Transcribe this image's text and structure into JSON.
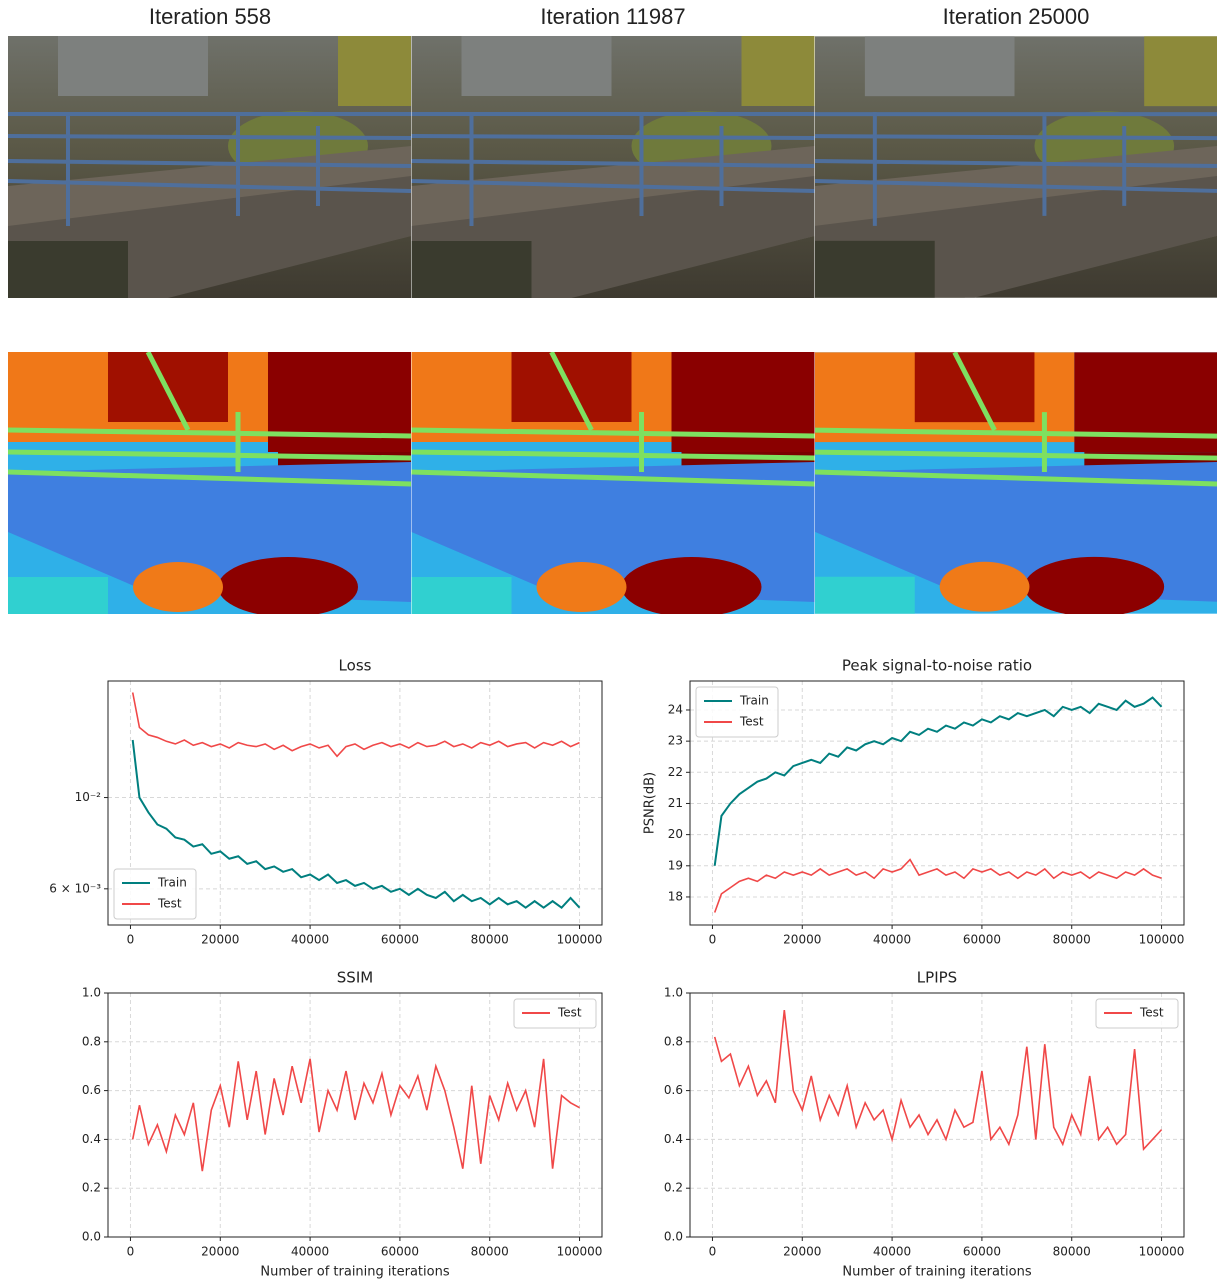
{
  "image_panels": {
    "titles": [
      "Iteration 558",
      "Iteration 11987",
      "Iteration 25000"
    ]
  },
  "chart_data": [
    {
      "type": "line",
      "title": "Loss",
      "yscale": "log",
      "grid": true,
      "legend": "lower left",
      "x": [
        500,
        2000,
        4000,
        6000,
        8000,
        10000,
        12000,
        14000,
        16000,
        18000,
        20000,
        22000,
        24000,
        26000,
        28000,
        30000,
        32000,
        34000,
        36000,
        38000,
        40000,
        42000,
        44000,
        46000,
        48000,
        50000,
        52000,
        54000,
        56000,
        58000,
        60000,
        62000,
        64000,
        66000,
        68000,
        70000,
        72000,
        74000,
        76000,
        78000,
        80000,
        82000,
        84000,
        86000,
        88000,
        90000,
        92000,
        94000,
        96000,
        98000,
        100000
      ],
      "series": [
        {
          "name": "Train",
          "color": "#007f7f",
          "values": [
            0.0138,
            0.01,
            0.0092,
            0.0086,
            0.0084,
            0.008,
            0.0079,
            0.0076,
            0.0077,
            0.0073,
            0.0074,
            0.0071,
            0.0072,
            0.0069,
            0.007,
            0.0067,
            0.0068,
            0.0066,
            0.0067,
            0.0064,
            0.0065,
            0.0063,
            0.0065,
            0.0062,
            0.0063,
            0.0061,
            0.0062,
            0.006,
            0.0061,
            0.0059,
            0.006,
            0.0058,
            0.006,
            0.0058,
            0.0057,
            0.0059,
            0.0056,
            0.0058,
            0.0056,
            0.0057,
            0.0055,
            0.0057,
            0.0055,
            0.0056,
            0.0054,
            0.0056,
            0.0054,
            0.0056,
            0.0054,
            0.0057,
            0.0054
          ]
        },
        {
          "name": "Test",
          "color": "#f04848",
          "values": [
            0.018,
            0.0148,
            0.0142,
            0.014,
            0.0137,
            0.0135,
            0.0138,
            0.0134,
            0.0136,
            0.0133,
            0.0135,
            0.0132,
            0.0136,
            0.0134,
            0.0133,
            0.0135,
            0.0131,
            0.0134,
            0.013,
            0.0133,
            0.0135,
            0.0132,
            0.0134,
            0.0126,
            0.0133,
            0.0135,
            0.0131,
            0.0134,
            0.0136,
            0.0133,
            0.0135,
            0.0132,
            0.0136,
            0.0133,
            0.0134,
            0.0137,
            0.0133,
            0.0135,
            0.0132,
            0.0136,
            0.0134,
            0.0137,
            0.0133,
            0.0135,
            0.0136,
            0.0132,
            0.0136,
            0.0134,
            0.0137,
            0.0133,
            0.0136
          ]
        }
      ],
      "xlim": [
        -5000,
        105000
      ],
      "xticks": [
        0,
        20000,
        40000,
        60000,
        80000,
        100000
      ],
      "ylim": [
        0.0049,
        0.0192
      ],
      "yticks": [
        {
          "value": 0.006,
          "label": "6 × 10⁻³"
        },
        {
          "value": 0.01,
          "label": "10⁻²"
        }
      ]
    },
    {
      "type": "line",
      "title": "Peak signal-to-noise ratio",
      "y_label": "PSNR(dB)",
      "grid": true,
      "legend": "upper left",
      "x": [
        500,
        2000,
        4000,
        6000,
        8000,
        10000,
        12000,
        14000,
        16000,
        18000,
        20000,
        22000,
        24000,
        26000,
        28000,
        30000,
        32000,
        34000,
        36000,
        38000,
        40000,
        42000,
        44000,
        46000,
        48000,
        50000,
        52000,
        54000,
        56000,
        58000,
        60000,
        62000,
        64000,
        66000,
        68000,
        70000,
        72000,
        74000,
        76000,
        78000,
        80000,
        82000,
        84000,
        86000,
        88000,
        90000,
        92000,
        94000,
        96000,
        98000,
        100000
      ],
      "series": [
        {
          "name": "Train",
          "color": "#007f7f",
          "values": [
            19.0,
            20.6,
            21.0,
            21.3,
            21.5,
            21.7,
            21.8,
            22.0,
            21.9,
            22.2,
            22.3,
            22.4,
            22.3,
            22.6,
            22.5,
            22.8,
            22.7,
            22.9,
            23.0,
            22.9,
            23.1,
            23.0,
            23.3,
            23.2,
            23.4,
            23.3,
            23.5,
            23.4,
            23.6,
            23.5,
            23.7,
            23.6,
            23.8,
            23.7,
            23.9,
            23.8,
            23.9,
            24.0,
            23.8,
            24.1,
            24.0,
            24.1,
            23.9,
            24.2,
            24.1,
            24.0,
            24.3,
            24.1,
            24.2,
            24.4,
            24.1
          ]
        },
        {
          "name": "Test",
          "color": "#f04848",
          "values": [
            17.5,
            18.1,
            18.3,
            18.5,
            18.6,
            18.5,
            18.7,
            18.6,
            18.8,
            18.7,
            18.8,
            18.7,
            18.9,
            18.7,
            18.8,
            18.9,
            18.7,
            18.8,
            18.6,
            18.9,
            18.8,
            18.9,
            19.2,
            18.7,
            18.8,
            18.9,
            18.7,
            18.8,
            18.6,
            18.9,
            18.8,
            18.9,
            18.7,
            18.8,
            18.6,
            18.8,
            18.7,
            18.9,
            18.6,
            18.8,
            18.7,
            18.8,
            18.6,
            18.8,
            18.7,
            18.6,
            18.8,
            18.7,
            18.9,
            18.7,
            18.6
          ]
        }
      ],
      "xlim": [
        -5000,
        105000
      ],
      "xticks": [
        0,
        20000,
        40000,
        60000,
        80000,
        100000
      ],
      "ylim": [
        17.1,
        24.93
      ],
      "yticks": [
        18,
        19,
        20,
        21,
        22,
        23,
        24
      ]
    },
    {
      "type": "line",
      "title": "SSIM",
      "x_label": "Number of training iterations",
      "grid": true,
      "legend": "upper right",
      "x": [
        500,
        2000,
        4000,
        6000,
        8000,
        10000,
        12000,
        14000,
        16000,
        18000,
        20000,
        22000,
        24000,
        26000,
        28000,
        30000,
        32000,
        34000,
        36000,
        38000,
        40000,
        42000,
        44000,
        46000,
        48000,
        50000,
        52000,
        54000,
        56000,
        58000,
        60000,
        62000,
        64000,
        66000,
        68000,
        70000,
        72000,
        74000,
        76000,
        78000,
        80000,
        82000,
        84000,
        86000,
        88000,
        90000,
        92000,
        94000,
        96000,
        98000,
        100000
      ],
      "series": [
        {
          "name": "Test",
          "color": "#f04848",
          "values": [
            0.4,
            0.54,
            0.38,
            0.46,
            0.35,
            0.5,
            0.42,
            0.55,
            0.27,
            0.52,
            0.62,
            0.45,
            0.72,
            0.48,
            0.68,
            0.42,
            0.65,
            0.5,
            0.7,
            0.55,
            0.73,
            0.43,
            0.6,
            0.52,
            0.68,
            0.48,
            0.63,
            0.55,
            0.67,
            0.5,
            0.62,
            0.57,
            0.66,
            0.52,
            0.7,
            0.6,
            0.45,
            0.28,
            0.62,
            0.3,
            0.58,
            0.48,
            0.63,
            0.52,
            0.6,
            0.45,
            0.73,
            0.28,
            0.58,
            0.55,
            0.53
          ]
        }
      ],
      "xlim": [
        -5000,
        105000
      ],
      "xticks": [
        0,
        20000,
        40000,
        60000,
        80000,
        100000
      ],
      "ylim": [
        0,
        1
      ],
      "yticks": [
        {
          "value": 0,
          "label": "0.0"
        },
        0.2,
        0.4,
        0.6,
        0.8,
        {
          "value": 1,
          "label": "1.0"
        }
      ]
    },
    {
      "type": "line",
      "title": "LPIPS",
      "x_label": "Number of training iterations",
      "grid": true,
      "legend": "upper right",
      "x": [
        500,
        2000,
        4000,
        6000,
        8000,
        10000,
        12000,
        14000,
        16000,
        18000,
        20000,
        22000,
        24000,
        26000,
        28000,
        30000,
        32000,
        34000,
        36000,
        38000,
        40000,
        42000,
        44000,
        46000,
        48000,
        50000,
        52000,
        54000,
        56000,
        58000,
        60000,
        62000,
        64000,
        66000,
        68000,
        70000,
        72000,
        74000,
        76000,
        78000,
        80000,
        82000,
        84000,
        86000,
        88000,
        90000,
        92000,
        94000,
        96000,
        98000,
        100000
      ],
      "series": [
        {
          "name": "Test",
          "color": "#f04848",
          "values": [
            0.82,
            0.72,
            0.75,
            0.62,
            0.7,
            0.58,
            0.64,
            0.55,
            0.93,
            0.6,
            0.52,
            0.66,
            0.48,
            0.58,
            0.5,
            0.62,
            0.45,
            0.55,
            0.48,
            0.52,
            0.4,
            0.56,
            0.45,
            0.5,
            0.42,
            0.48,
            0.4,
            0.52,
            0.45,
            0.47,
            0.68,
            0.4,
            0.45,
            0.38,
            0.5,
            0.78,
            0.4,
            0.79,
            0.45,
            0.38,
            0.5,
            0.42,
            0.66,
            0.4,
            0.45,
            0.38,
            0.42,
            0.77,
            0.36,
            0.4,
            0.44
          ]
        }
      ],
      "xlim": [
        -5000,
        105000
      ],
      "xticks": [
        0,
        20000,
        40000,
        60000,
        80000,
        100000
      ],
      "ylim": [
        0,
        1
      ],
      "yticks": [
        {
          "value": 0,
          "label": "0.0"
        },
        0.2,
        0.4,
        0.6,
        0.8,
        {
          "value": 1,
          "label": "1.0"
        }
      ]
    }
  ]
}
